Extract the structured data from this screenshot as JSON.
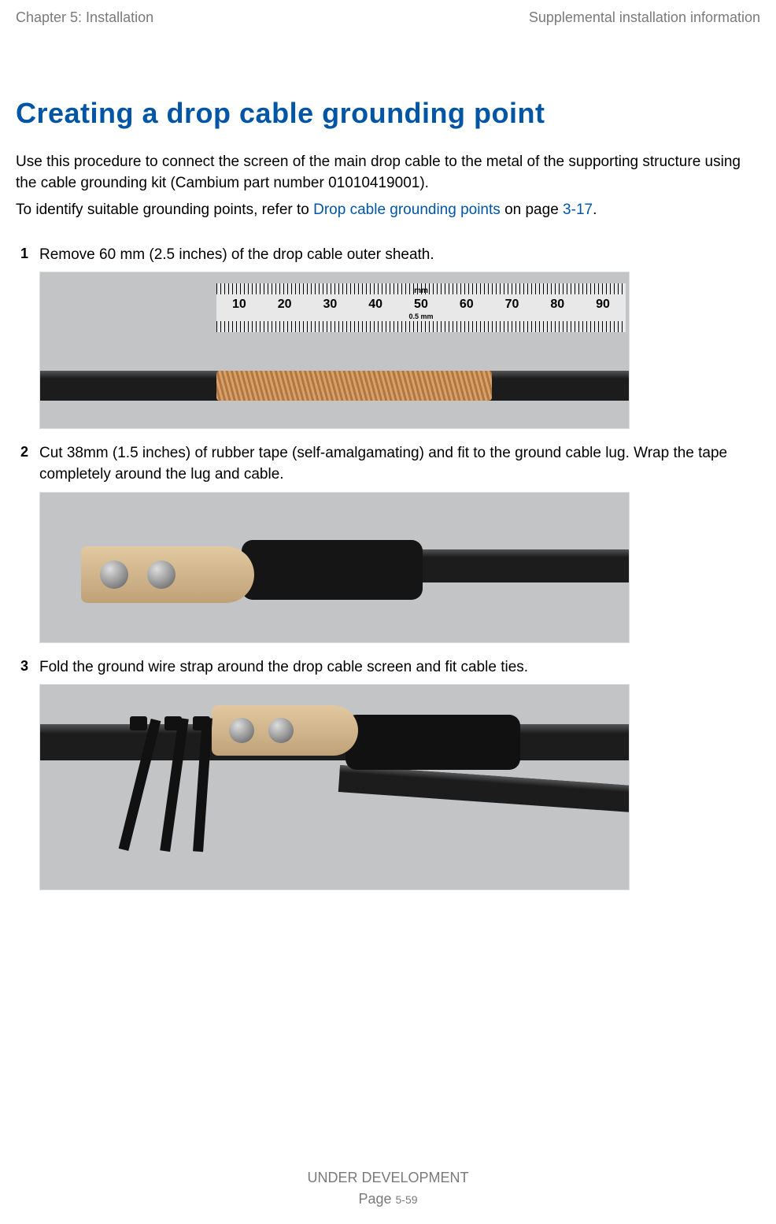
{
  "header": {
    "left": "Chapter 5:  Installation",
    "right": "Supplemental installation information"
  },
  "title": "Creating a drop cable grounding point",
  "intro_p1": "Use this procedure to connect the screen of the main drop cable to the metal of the supporting structure using the cable grounding kit (Cambium part number 01010419001).",
  "intro_p2_a": "To identify suitable grounding points, refer to ",
  "intro_p2_link": "Drop cable grounding points",
  "intro_p2_b": " on page ",
  "intro_p2_pageref": "3-17",
  "intro_p2_c": ".",
  "steps": [
    {
      "n": "1",
      "text": "Remove 60 mm (2.5 inches) of the drop cable outer sheath.",
      "ruler": {
        "mm_label": "mm",
        "half_label": "0.5 mm",
        "nums": [
          "10",
          "20",
          "30",
          "40",
          "50",
          "60",
          "70",
          "80",
          "90"
        ]
      }
    },
    {
      "n": "2",
      "text": "Cut 38mm (1.5 inches) of rubber tape (self-amalgamating) and fit to the ground cable lug. Wrap the tape completely around the lug and cable."
    },
    {
      "n": "3",
      "text": "Fold the ground wire strap around the drop cable screen and fit cable ties."
    }
  ],
  "footer": {
    "line1": "UNDER DEVELOPMENT",
    "line2_a": "Page ",
    "line2_b": "5-59"
  },
  "colors": {
    "link": "#0055a5",
    "title": "#0055a5",
    "muted": "#7a7a7a",
    "figure_bg": "#c3c4c6",
    "figure_border": "#dcdcdc",
    "cable_black": "#1c1c1c",
    "copper_braid_a": "#d9a06a",
    "copper_braid_b": "#b07740",
    "lug_light": "#e2c9a0",
    "lug_dark": "#bfa177"
  }
}
